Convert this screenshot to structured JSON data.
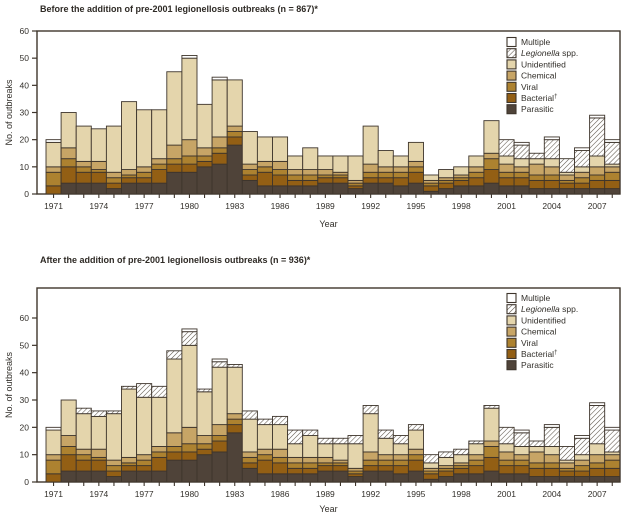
{
  "figure": {
    "background": "#ffffff",
    "axis_label_x": "Year",
    "axis_label_y": "No. of outbreaks",
    "frame_color": "#3e352c",
    "hatch_line_color": "#5e564b"
  },
  "chart_data": [
    {
      "type": "bar",
      "stacked": true,
      "title": "Before the addition of pre-2001 legionellosis outbreaks (n = 867)*",
      "n_total": 867,
      "xlabel": "Year",
      "ylabel": "No. of outbreaks",
      "ylim": [
        0,
        60
      ],
      "yticks": [
        0,
        10,
        20,
        30,
        40,
        50,
        60
      ],
      "xtick_labels": [
        "1971",
        "1974",
        "1977",
        "1980",
        "1983",
        "1986",
        "1989",
        "1992",
        "1995",
        "1998",
        "2001",
        "2004",
        "2007"
      ],
      "legend_position": "top-right",
      "legend_order_top_to_bottom": [
        "Multiple",
        "Legionella spp.",
        "Unidentified",
        "Chemical",
        "Viral",
        "Bacterial†",
        "Parasitic"
      ],
      "years": [
        1971,
        1972,
        1973,
        1974,
        1975,
        1976,
        1977,
        1978,
        1979,
        1980,
        1981,
        1982,
        1983,
        1984,
        1985,
        1986,
        1987,
        1988,
        1989,
        1990,
        1991,
        1992,
        1993,
        1994,
        1995,
        1996,
        1997,
        1998,
        1999,
        2000,
        2001,
        2002,
        2003,
        2004,
        2005,
        2006,
        2007,
        2008
      ],
      "series": [
        {
          "name": "Parasitic",
          "color": "#4f4339",
          "values": [
            0,
            4,
            4,
            4,
            2,
            4,
            4,
            4,
            8,
            8,
            10,
            11,
            18,
            5,
            3,
            3,
            3,
            3,
            4,
            4,
            2,
            4,
            4,
            3,
            4,
            1,
            2,
            3,
            3,
            4,
            3,
            3,
            2,
            2,
            2,
            2,
            2,
            2
          ]
        },
        {
          "name": "Bacterial",
          "sup": "†",
          "color": "#935f14",
          "values": [
            3,
            6,
            4,
            4,
            2,
            2,
            2,
            5,
            3,
            3,
            2,
            4,
            3,
            2,
            5,
            4,
            2,
            2,
            2,
            2,
            1,
            2,
            2,
            3,
            4,
            2,
            2,
            2,
            3,
            5,
            3,
            3,
            3,
            3,
            2,
            2,
            3,
            3
          ]
        },
        {
          "name": "Viral",
          "color": "#ad8230",
          "values": [
            5,
            3,
            2,
            1,
            2,
            1,
            2,
            2,
            2,
            3,
            2,
            2,
            2,
            2,
            2,
            2,
            2,
            2,
            1,
            1,
            1,
            2,
            2,
            2,
            2,
            1,
            1,
            1,
            2,
            4,
            2,
            2,
            2,
            2,
            1,
            2,
            2,
            3
          ]
        },
        {
          "name": "Chemical",
          "color": "#c7a566",
          "values": [
            2,
            4,
            2,
            3,
            2,
            2,
            2,
            2,
            5,
            6,
            3,
            4,
            2,
            2,
            2,
            3,
            2,
            2,
            2,
            1,
            1,
            3,
            2,
            2,
            2,
            1,
            1,
            1,
            2,
            2,
            3,
            2,
            4,
            3,
            2,
            2,
            3,
            2
          ]
        },
        {
          "name": "Unidentified",
          "color": "#e4d5ac",
          "values": [
            9,
            13,
            13,
            12,
            17,
            25,
            21,
            18,
            27,
            30,
            16,
            21,
            17,
            12,
            9,
            9,
            5,
            8,
            5,
            6,
            9,
            14,
            6,
            4,
            7,
            2,
            3,
            3,
            4,
            12,
            3,
            3,
            2,
            3,
            1,
            2,
            4,
            1
          ]
        },
        {
          "name": "Legionella",
          "suffix": " spp.",
          "italic": true,
          "hatch": true,
          "color": "#ffffff",
          "values": [
            0,
            0,
            0,
            0,
            0,
            0,
            0,
            0,
            0,
            0,
            0,
            0,
            0,
            0,
            0,
            0,
            0,
            0,
            0,
            0,
            0,
            0,
            0,
            0,
            0,
            0,
            0,
            0,
            0,
            0,
            6,
            5,
            2,
            7,
            5,
            6,
            14,
            8
          ]
        },
        {
          "name": "Multiple",
          "color": "#ffffff",
          "values": [
            1,
            0,
            0,
            0,
            0,
            0,
            0,
            0,
            0,
            1,
            0,
            1,
            0,
            0,
            0,
            0,
            0,
            0,
            0,
            0,
            0,
            0,
            0,
            0,
            0,
            0,
            0,
            0,
            0,
            0,
            0,
            1,
            0,
            1,
            0,
            1,
            1,
            1
          ]
        }
      ]
    },
    {
      "type": "bar",
      "stacked": true,
      "title": "After the addition of pre-2001 legionellosis outbreaks (n = 936)*",
      "n_total": 936,
      "xlabel": "Year",
      "ylabel": "No. of outbreaks",
      "ylim": [
        0,
        60
      ],
      "yticks": [
        0,
        10,
        20,
        30,
        40,
        50,
        60
      ],
      "xtick_labels": [
        "1971",
        "1974",
        "1977",
        "1980",
        "1983",
        "1986",
        "1989",
        "1992",
        "1995",
        "1998",
        "2001",
        "2004",
        "2007"
      ],
      "legend_position": "top-right",
      "legend_order_top_to_bottom": [
        "Multiple",
        "Legionella spp.",
        "Unidentified",
        "Chemical",
        "Viral",
        "Bacterial†",
        "Parasitic"
      ],
      "years": [
        1971,
        1972,
        1973,
        1974,
        1975,
        1976,
        1977,
        1978,
        1979,
        1980,
        1981,
        1982,
        1983,
        1984,
        1985,
        1986,
        1987,
        1988,
        1989,
        1990,
        1991,
        1992,
        1993,
        1994,
        1995,
        1996,
        1997,
        1998,
        1999,
        2000,
        2001,
        2002,
        2003,
        2004,
        2005,
        2006,
        2007,
        2008
      ],
      "series": [
        {
          "name": "Parasitic",
          "color": "#4f4339",
          "values": [
            0,
            4,
            4,
            4,
            2,
            4,
            4,
            4,
            8,
            8,
            10,
            11,
            18,
            5,
            3,
            3,
            3,
            3,
            4,
            4,
            2,
            4,
            4,
            3,
            4,
            1,
            2,
            3,
            3,
            4,
            3,
            3,
            2,
            2,
            2,
            2,
            2,
            2
          ]
        },
        {
          "name": "Bacterial",
          "sup": "†",
          "color": "#935f14",
          "values": [
            3,
            6,
            4,
            4,
            2,
            2,
            2,
            5,
            3,
            3,
            2,
            4,
            3,
            2,
            5,
            4,
            2,
            2,
            2,
            2,
            1,
            2,
            2,
            3,
            4,
            2,
            2,
            2,
            3,
            5,
            3,
            3,
            3,
            3,
            2,
            2,
            3,
            3
          ]
        },
        {
          "name": "Viral",
          "color": "#ad8230",
          "values": [
            5,
            3,
            2,
            1,
            2,
            1,
            2,
            2,
            2,
            3,
            2,
            2,
            2,
            2,
            2,
            2,
            2,
            2,
            1,
            1,
            1,
            2,
            2,
            2,
            2,
            1,
            1,
            1,
            2,
            4,
            2,
            2,
            2,
            2,
            1,
            2,
            2,
            3
          ]
        },
        {
          "name": "Chemical",
          "color": "#c7a566",
          "values": [
            2,
            4,
            2,
            3,
            2,
            2,
            2,
            2,
            5,
            6,
            3,
            4,
            2,
            2,
            2,
            3,
            2,
            2,
            2,
            1,
            1,
            3,
            2,
            2,
            2,
            1,
            1,
            1,
            2,
            2,
            3,
            2,
            4,
            3,
            2,
            2,
            3,
            2
          ]
        },
        {
          "name": "Unidentified",
          "color": "#e4d5ac",
          "values": [
            9,
            13,
            13,
            12,
            17,
            25,
            21,
            18,
            27,
            30,
            16,
            21,
            17,
            12,
            9,
            9,
            5,
            8,
            5,
            6,
            9,
            14,
            6,
            4,
            7,
            2,
            3,
            3,
            4,
            12,
            3,
            3,
            2,
            3,
            1,
            2,
            4,
            1
          ]
        },
        {
          "name": "Legionella",
          "suffix": " spp.",
          "italic": true,
          "hatch": true,
          "color": "#ffffff",
          "values": [
            0,
            0,
            2,
            2,
            1,
            1,
            5,
            4,
            3,
            5,
            1,
            2,
            1,
            3,
            2,
            3,
            5,
            2,
            2,
            2,
            3,
            3,
            3,
            3,
            2,
            3,
            2,
            2,
            1,
            1,
            6,
            5,
            2,
            7,
            5,
            6,
            14,
            8
          ]
        },
        {
          "name": "Multiple",
          "color": "#ffffff",
          "values": [
            1,
            0,
            0,
            0,
            0,
            0,
            0,
            0,
            0,
            1,
            0,
            1,
            0,
            0,
            0,
            0,
            0,
            0,
            0,
            0,
            0,
            0,
            0,
            0,
            0,
            0,
            0,
            0,
            0,
            0,
            0,
            1,
            0,
            1,
            0,
            1,
            1,
            1
          ]
        }
      ]
    }
  ]
}
